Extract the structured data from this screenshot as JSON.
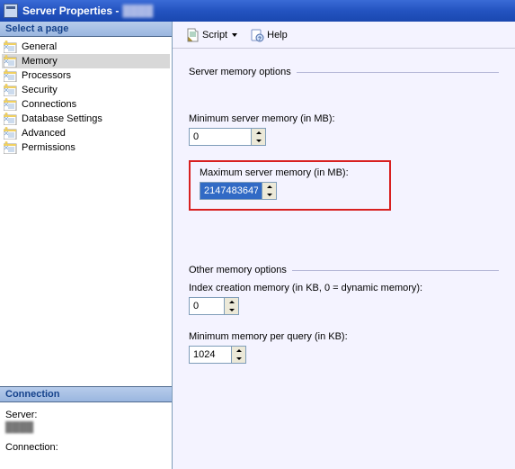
{
  "window": {
    "title": "Server Properties -",
    "server_name": "████"
  },
  "sidebar": {
    "header": "Select a page",
    "items": [
      {
        "label": "General"
      },
      {
        "label": "Memory",
        "selected": true
      },
      {
        "label": "Processors"
      },
      {
        "label": "Security"
      },
      {
        "label": "Connections"
      },
      {
        "label": "Database Settings"
      },
      {
        "label": "Advanced"
      },
      {
        "label": "Permissions"
      }
    ]
  },
  "connection": {
    "header": "Connection",
    "server_label": "Server:",
    "connection_label": "Connection:"
  },
  "toolbar": {
    "script_label": "Script",
    "help_label": "Help"
  },
  "content": {
    "section1_title": "Server memory options",
    "min_mem_label": "Minimum server memory (in MB):",
    "min_mem_value": "0",
    "max_mem_label": "Maximum server memory (in MB):",
    "max_mem_value": "2147483647",
    "section2_title": "Other memory options",
    "index_mem_label": "Index creation memory (in KB, 0 = dynamic memory):",
    "index_mem_value": "0",
    "min_query_label": "Minimum memory per query (in KB):",
    "min_query_value": "1024"
  }
}
